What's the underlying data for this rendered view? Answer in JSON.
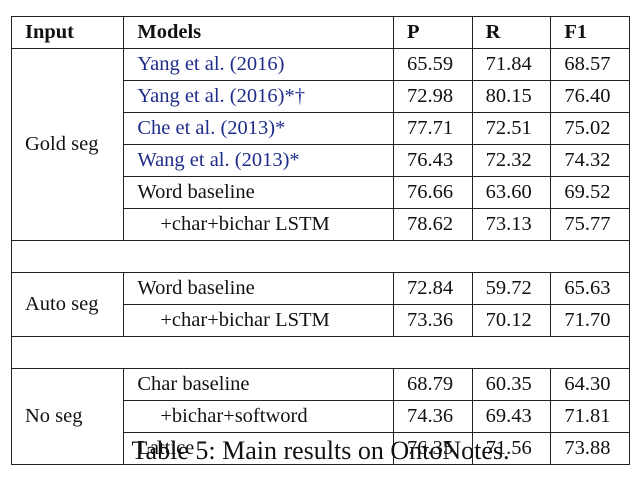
{
  "table": {
    "headers": [
      "Input",
      "Models",
      "P",
      "R",
      "F1"
    ],
    "groups": [
      {
        "input": "Gold seg",
        "rows": [
          {
            "model": "Yang et al. (2016)",
            "cite": true,
            "indent": false,
            "P": "65.59",
            "R": "71.84",
            "F1": "68.57",
            "boldP": false,
            "boldR": false,
            "boldF1": false
          },
          {
            "model": "Yang et al. (2016)*†",
            "cite": true,
            "indent": false,
            "P": "72.98",
            "R": "80.15",
            "F1": "76.40",
            "boldP": false,
            "boldR": true,
            "boldF1": true
          },
          {
            "model": "Che et al. (2013)*",
            "cite": true,
            "indent": false,
            "P": "77.71",
            "R": "72.51",
            "F1": "75.02",
            "boldP": false,
            "boldR": false,
            "boldF1": false
          },
          {
            "model": "Wang et al. (2013)*",
            "cite": true,
            "indent": false,
            "P": "76.43",
            "R": "72.32",
            "F1": "74.32",
            "boldP": false,
            "boldR": false,
            "boldF1": false
          },
          {
            "model": "Word baseline",
            "cite": false,
            "indent": false,
            "P": "76.66",
            "R": "63.60",
            "F1": "69.52",
            "boldP": false,
            "boldR": false,
            "boldF1": false,
            "sectionStart": true
          },
          {
            "model": "+char+bichar LSTM",
            "cite": false,
            "indent": true,
            "P": "78.62",
            "R": "73.13",
            "F1": "75.77",
            "boldP": true,
            "boldR": false,
            "boldF1": false
          }
        ]
      },
      {
        "input": "Auto seg",
        "rows": [
          {
            "model": "Word baseline",
            "cite": false,
            "indent": false,
            "P": "72.84",
            "R": "59.72",
            "F1": "65.63",
            "boldP": false,
            "boldR": false,
            "boldF1": false
          },
          {
            "model": "+char+bichar LSTM",
            "cite": false,
            "indent": true,
            "P": "73.36",
            "R": "70.12",
            "F1": "71.70",
            "boldP": false,
            "boldR": false,
            "boldF1": false
          }
        ]
      },
      {
        "input": "No seg",
        "rows": [
          {
            "model": "Char baseline",
            "cite": false,
            "indent": false,
            "P": "68.79",
            "R": "60.35",
            "F1": "64.30",
            "boldP": false,
            "boldR": false,
            "boldF1": false
          },
          {
            "model": "+bichar+softword",
            "cite": false,
            "indent": true,
            "P": "74.36",
            "R": "69.43",
            "F1": "71.81",
            "boldP": false,
            "boldR": false,
            "boldF1": false
          },
          {
            "model": "Lattice",
            "cite": false,
            "indent": false,
            "P": "76.35",
            "R": "71.56",
            "F1": "73.88",
            "boldP": true,
            "boldR": true,
            "boldF1": true
          }
        ]
      }
    ]
  },
  "caption": "Table 5: Main results on OntoNotes.",
  "colors": {
    "citation": "#1f2d8a",
    "text": "#111111",
    "border": "#222222"
  }
}
